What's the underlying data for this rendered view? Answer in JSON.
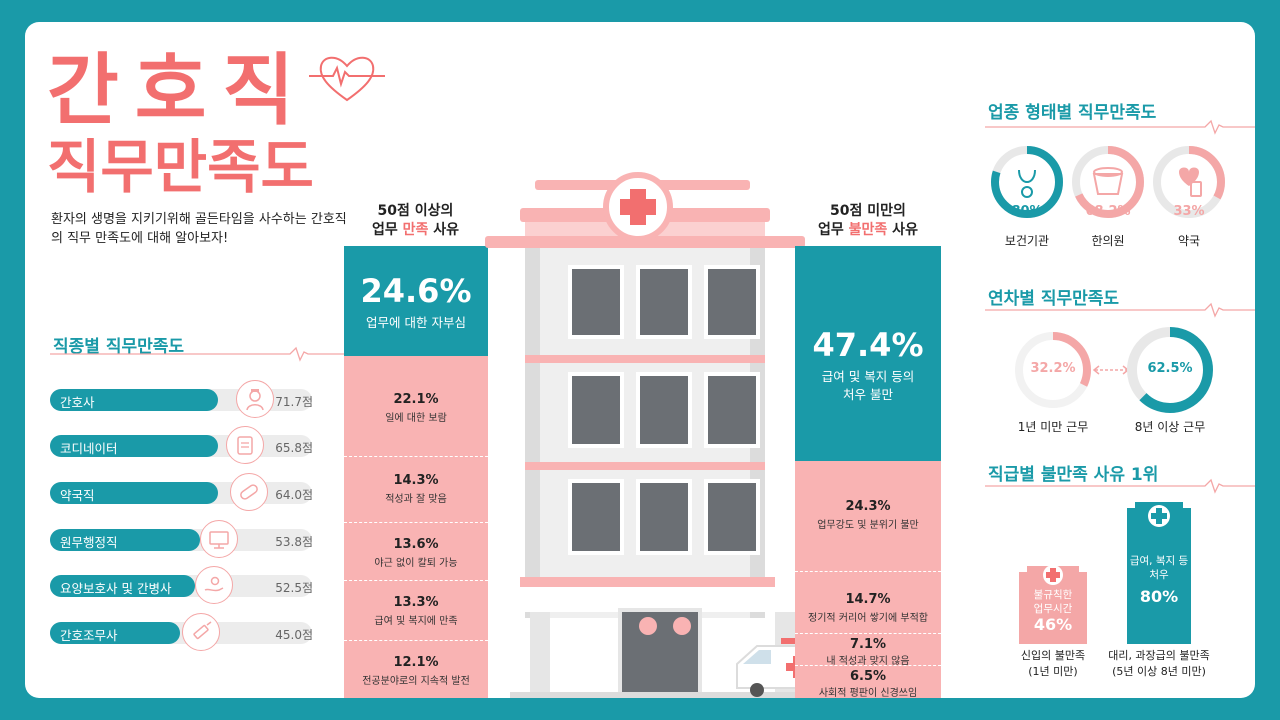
{
  "title": {
    "line1": "간호직",
    "line2": "직무만족도"
  },
  "intro": "환자의 생명을 지키기위해 골든타임을 사수하는 간호직의 직무 만족도에 대해 알아보자!",
  "occupation_section": {
    "title": "직종별 직무만족도",
    "items": [
      {
        "label": "간호사",
        "score": "71.7점",
        "value": 71.7,
        "icon": "nurse-icon"
      },
      {
        "label": "코디네이터",
        "score": "65.8점",
        "value": 65.8,
        "icon": "clipboard-icon"
      },
      {
        "label": "약국직",
        "score": "64.0점",
        "value": 64.0,
        "icon": "pill-icon"
      },
      {
        "label": "원무행정직",
        "score": "53.8점",
        "value": 53.8,
        "icon": "monitor-icon"
      },
      {
        "label": "요양보호사 및 간병사",
        "score": "52.5점",
        "value": 52.5,
        "icon": "caregiver-hand-icon"
      },
      {
        "label": "간호조무사",
        "score": "45.0점",
        "value": 45.0,
        "icon": "syringe-icon"
      }
    ]
  },
  "satisfied": {
    "head1": "50점 이상의",
    "head2a": "업무 ",
    "head2b": "만족",
    "head2c": " 사유",
    "top": {
      "pct": "24.6%",
      "desc": "업무에 대한 자부심"
    },
    "items": [
      {
        "pct": "22.1%",
        "desc": "일에 대한 보람"
      },
      {
        "pct": "14.3%",
        "desc": "적성과 잘 맞음"
      },
      {
        "pct": "13.6%",
        "desc": "야근 없이 칼퇴 가능"
      },
      {
        "pct": "13.3%",
        "desc": "급여 및 복지에 만족"
      },
      {
        "pct": "12.1%",
        "desc": "전공분야로의 지속적 발전"
      }
    ]
  },
  "dissatisfied": {
    "head1": "50점 미만의",
    "head2a": "업무 ",
    "head2b": "불만족",
    "head2c": " 사유",
    "top": {
      "pct": "47.4%",
      "desc1": "급여 및 복지 등의",
      "desc2": "처우 불만"
    },
    "items": [
      {
        "pct": "24.3%",
        "desc": "업무강도 및 분위기 불만"
      },
      {
        "pct": "14.7%",
        "desc": "정기적 커리어 쌓기에 부적합"
      },
      {
        "pct": "7.1%",
        "desc": "내 적성과 맞지 않음"
      },
      {
        "pct": "6.5%",
        "desc": "사회적 평판이 신경쓰임"
      }
    ]
  },
  "workplace_section": {
    "title": "업종 형태별 직무만족도",
    "items": [
      {
        "label": "보건기관",
        "pct": "80%",
        "value": 80,
        "color": "#1a9aa8",
        "icon": "stethoscope-icon"
      },
      {
        "label": "한의원",
        "pct": "68.2%",
        "value": 68.2,
        "color": "#f4a7a7",
        "icon": "herbal-pot-icon"
      },
      {
        "label": "약국",
        "pct": "33%",
        "value": 33,
        "color": "#f4a7a7",
        "icon": "pill-bottle-icon"
      }
    ]
  },
  "tenure_section": {
    "title": "연차별 직무만족도",
    "items": [
      {
        "label": "1년 미만 근무",
        "pct": "32.2%",
        "value": 32.2,
        "color": "#f4a7a7"
      },
      {
        "label": "8년 이상 근무",
        "pct": "62.5%",
        "value": 62.5,
        "color": "#1a9aa8"
      }
    ]
  },
  "rank_section": {
    "title": "직급별 불만족 사유 1위",
    "items": [
      {
        "reason1": "불규칙한",
        "reason2": "업무시간",
        "pct": "46%",
        "cap1": "신입의 불만족",
        "cap2": "(1년 미만)",
        "color": "#f4a7a7"
      },
      {
        "reason1": "급여, 복지 등",
        "reason2": "처우",
        "pct": "80%",
        "cap1": "대리, 과장급의 불만족",
        "cap2": "(5년 이상 8년 미만)",
        "color": "#1a9aa8"
      }
    ]
  },
  "colors": {
    "teal": "#1a9aa8",
    "coral": "#f26f6f",
    "pink": "#f9b3b3"
  }
}
